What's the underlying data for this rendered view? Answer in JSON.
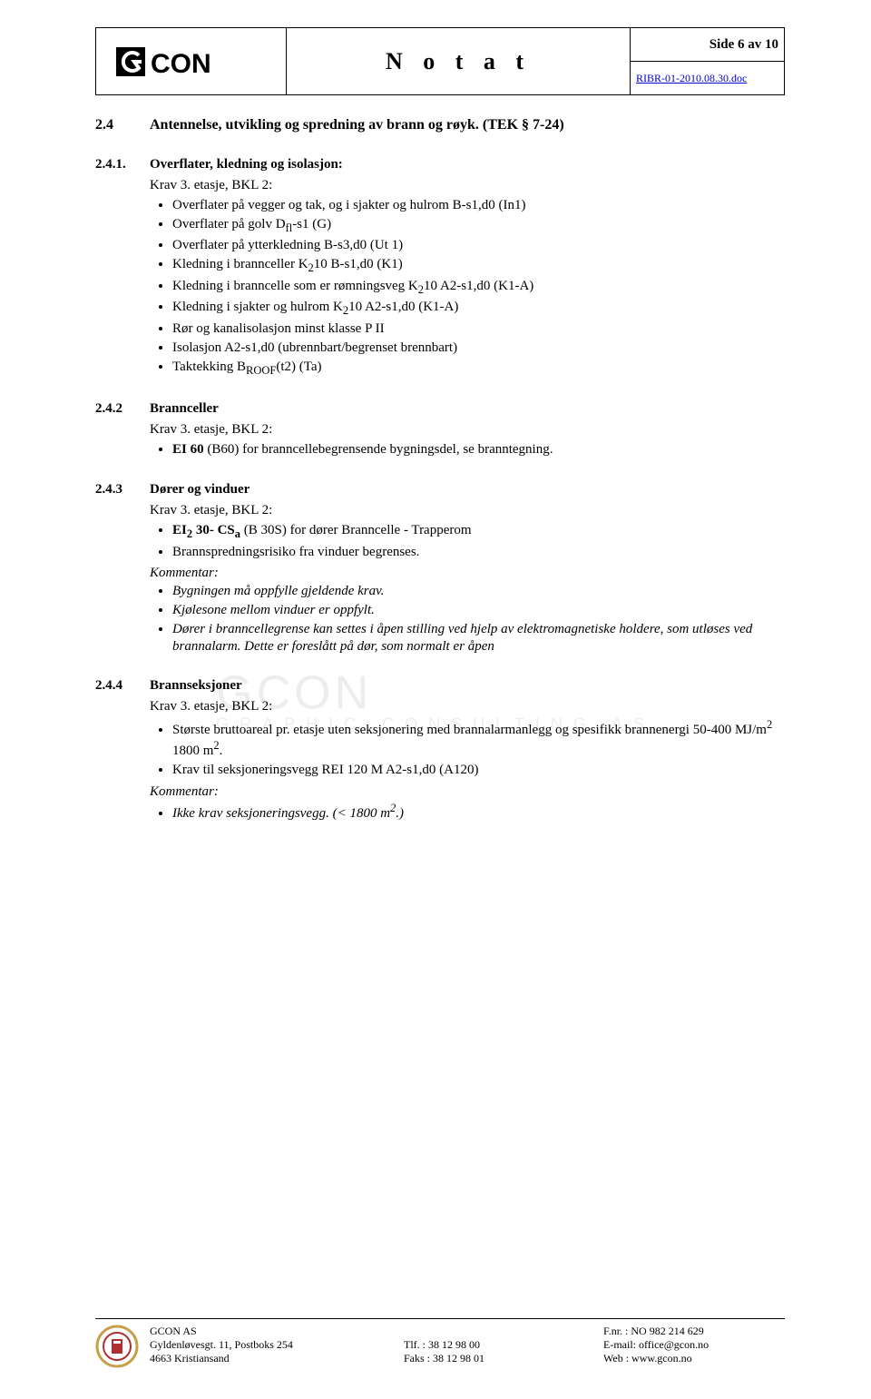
{
  "header": {
    "logo_text": "CON",
    "title": "N o t a t",
    "side_label": "Side 6 av 10",
    "doc_ref": "RIBR-01-2010.08.30.doc"
  },
  "watermark": {
    "line1": "GCON",
    "line2": "GRAPHIC CONSULTING AS"
  },
  "s24": {
    "num": "2.4",
    "title": "Antennelse, utvikling og spredning av brann og røyk. (TEK § 7-24)"
  },
  "s241": {
    "num": "2.4.1.",
    "title": "Overflater, kledning og isolasjon:",
    "krav": "Krav 3. etasje, BKL 2:",
    "b1": "Overflater på vegger og tak, og i sjakter og hulrom B-s1,d0 (In1)",
    "b2_html": "Overflater på golv D<sub>fl</sub>-s1 (G)",
    "b3": "Overflater på ytterkledning B-s3,d0 (Ut 1)",
    "b4_html": "Kledning i brannceller K<sub>2</sub>10 B-s1,d0 (K1)",
    "b5_html": "Kledning i branncelle som er rømningsveg K<sub>2</sub>10 A2-s1,d0 (K1-A)",
    "b6_html": "Kledning i sjakter og hulrom K<sub>2</sub>10 A2-s1,d0 (K1-A)",
    "b7_html": "Rør og kanalisolasjon minst klasse P II",
    "b8_html": "Isolasjon A2-s1,d0 (ubrennbart/begrenset brennbart)",
    "b9_html": "Taktekking B<sub>ROOF</sub>(t2) (Ta)"
  },
  "s242": {
    "num": "2.4.2",
    "title": "Brannceller",
    "krav": "Krav 3. etasje, BKL 2:",
    "b1_html": "<b>EI 60</b> (B60) for branncellebegrensende bygningsdel, se branntegning."
  },
  "s243": {
    "num": "2.4.3",
    "title": "Dører og vinduer",
    "krav": "Krav 3. etasje, BKL 2:",
    "b1_html": "<b>EI<sub>2</sub> 30- CS<sub>a</sub></b> (B 30S) for dører Branncelle - Trapperom",
    "b2": "Brannspredningsrisiko fra vinduer begrenses.",
    "kom": "Kommentar:",
    "k1": "Bygningen må oppfylle gjeldende krav.",
    "k2": "Kjølesone mellom vinduer er oppfylt.",
    "k3": "Dører i branncellegrense kan settes i åpen stilling ved hjelp av elektromagnetiske holdere, som utløses ved brannalarm. Dette er foreslått på dør, som normalt er åpen"
  },
  "s244": {
    "num": "2.4.4",
    "title": "Brannseksjoner",
    "krav": "Krav 3. etasje, BKL 2:",
    "b1_html": "Største bruttoareal pr. etasje uten seksjonering med brannalarmanlegg og spesifikk brannenergi 50-400 MJ/m<sup>2</sup> 1800 m<sup>2</sup>.",
    "b2": "Krav til seksjoneringsvegg REI 120 M A2-s1,d0 (A120)",
    "kom": "Kommentar:",
    "k1_html": "Ikke krav seksjoneringsvegg. (&lt; 1800 m<sup>2</sup>.)"
  },
  "footer": {
    "company": "GCON AS",
    "addr1": "Gyldenløvesgt. 11, Postboks 254",
    "addr2": "4663 Kristiansand",
    "tel": "Tlf. :    38 12 98 00",
    "fax": "Faks :  38 12 98 01",
    "fnr": "F.nr.   : NO 982 214 629",
    "email": "E-mail: office@gcon.no",
    "web": "Web : www.gcon.no"
  }
}
